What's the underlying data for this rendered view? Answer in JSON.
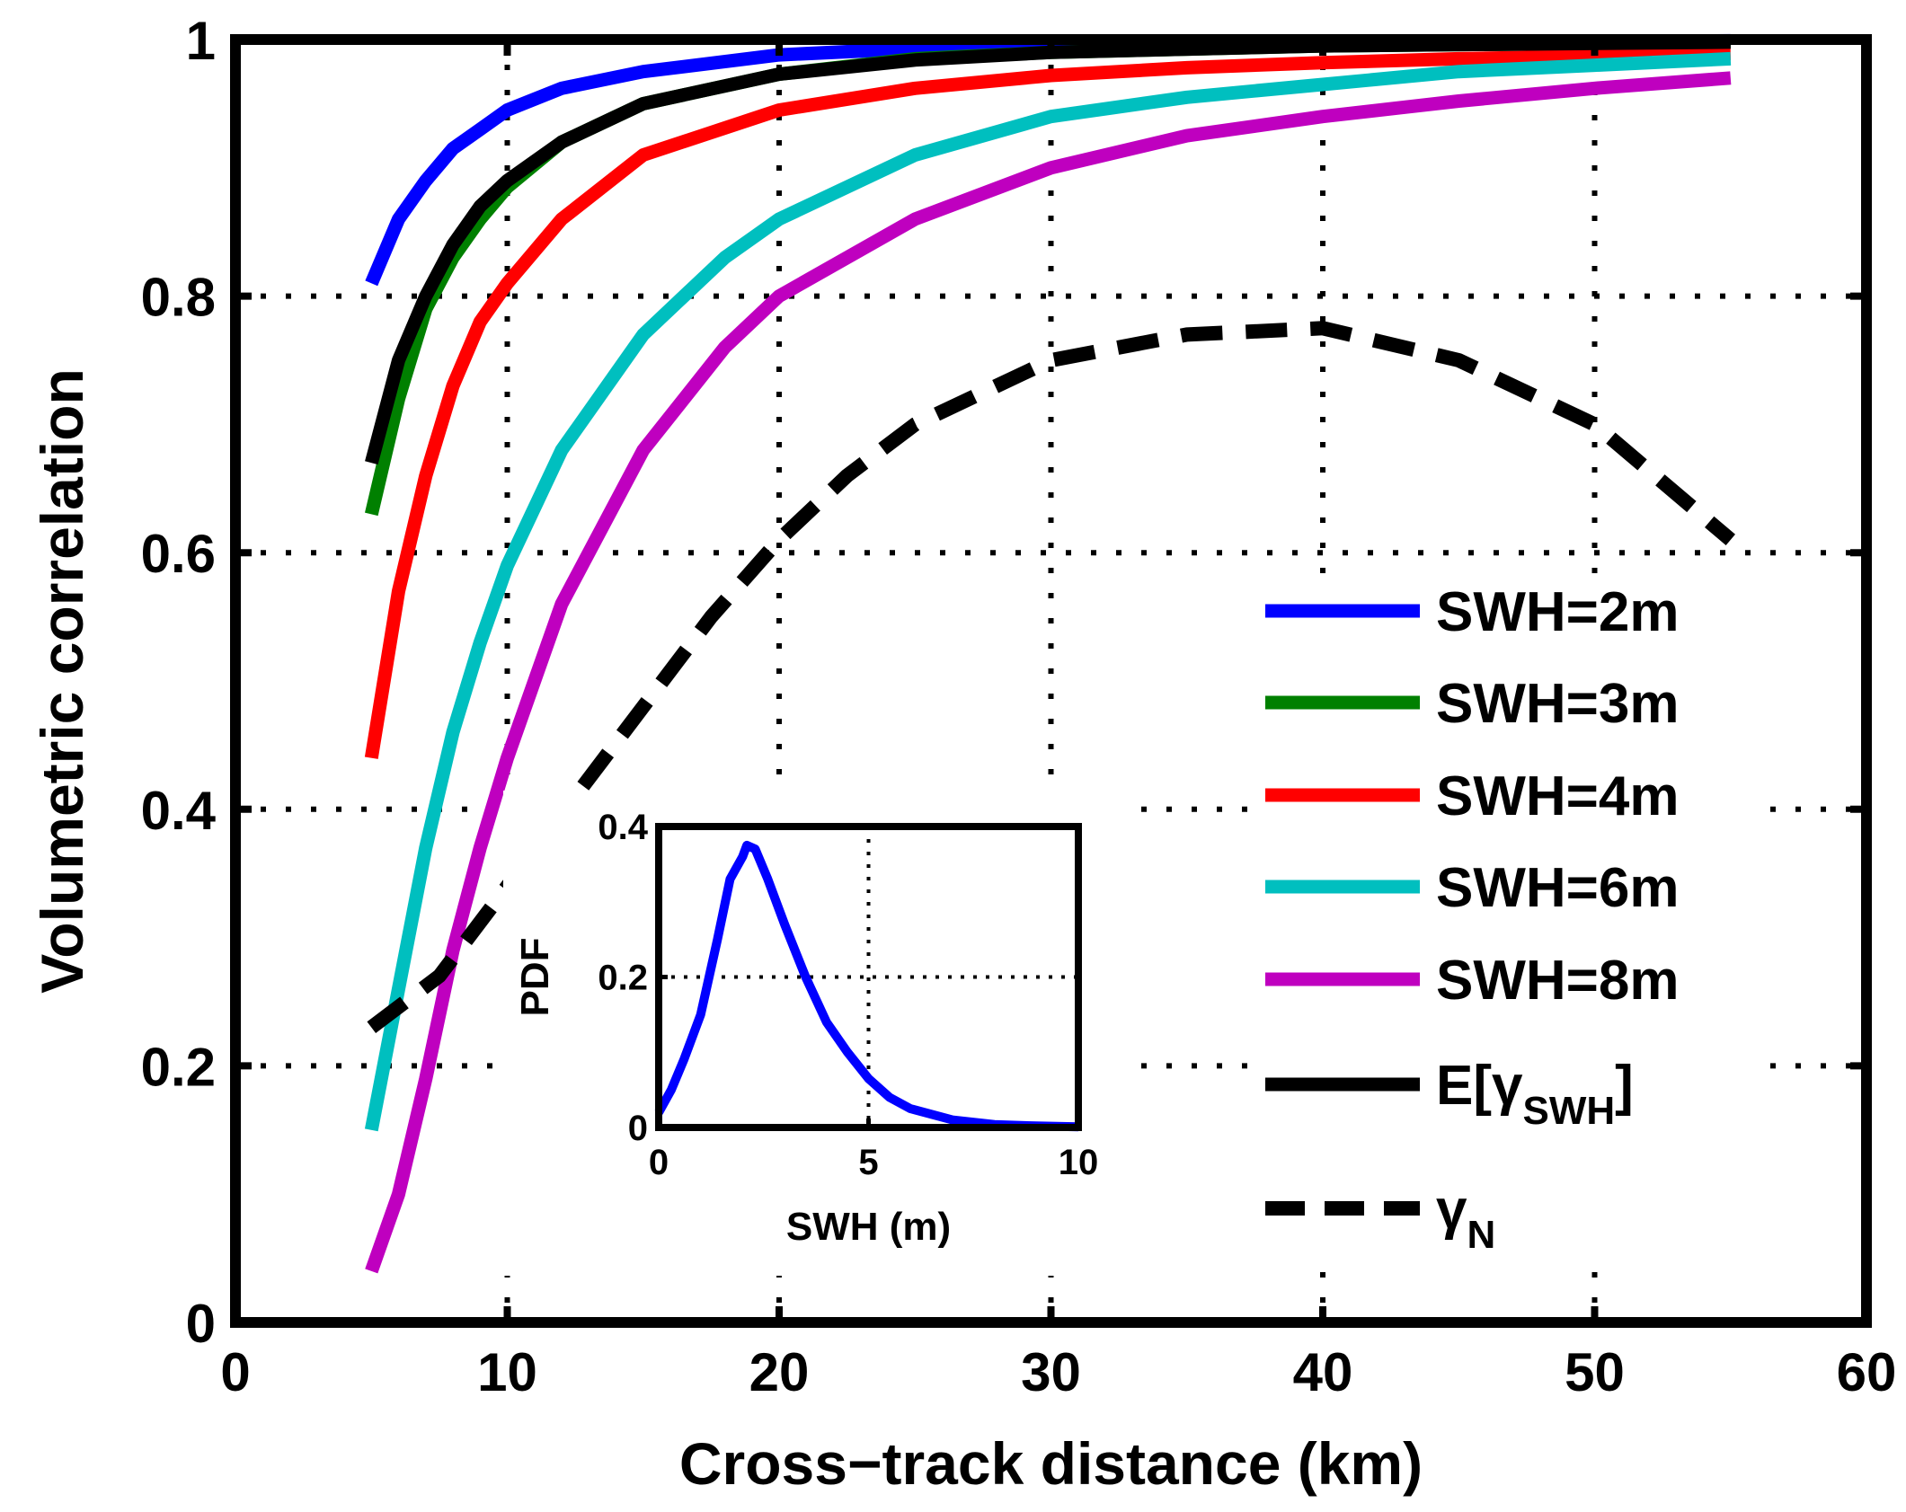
{
  "chart_data": {
    "type": "line",
    "xlabel": "Cross−track distance (km)",
    "ylabel": "Volumetric correlation",
    "xlim": [
      0,
      60
    ],
    "ylim": [
      0,
      1
    ],
    "xticks": [
      "0",
      "10",
      "20",
      "30",
      "40",
      "50",
      "60"
    ],
    "yticks": [
      "0",
      "0.2",
      "0.4",
      "0.6",
      "0.8",
      "1"
    ],
    "grid": "dotted",
    "legend_position": "right",
    "series": [
      {
        "name": "SWH=2m",
        "color": "#0000ff",
        "style": "solid",
        "x": [
          5,
          6,
          7,
          8,
          9,
          10,
          12,
          15,
          20,
          25,
          30,
          40,
          55
        ],
        "y": [
          0.81,
          0.86,
          0.89,
          0.915,
          0.93,
          0.945,
          0.962,
          0.975,
          0.988,
          0.993,
          0.996,
          0.998,
          0.999
        ]
      },
      {
        "name": "SWH=3m",
        "color": "#008000",
        "style": "solid",
        "x": [
          5,
          6,
          7,
          8,
          9,
          10,
          12,
          15,
          20,
          25,
          30,
          40,
          55
        ],
        "y": [
          0.63,
          0.72,
          0.79,
          0.83,
          0.86,
          0.885,
          0.92,
          0.95,
          0.973,
          0.985,
          0.99,
          0.995,
          0.998
        ]
      },
      {
        "name": "SWH=4m",
        "color": "#ff0000",
        "style": "solid",
        "x": [
          5,
          6,
          7,
          8,
          9,
          10,
          12,
          15,
          20,
          25,
          30,
          35,
          40,
          45,
          50,
          55
        ],
        "y": [
          0.44,
          0.57,
          0.66,
          0.73,
          0.78,
          0.81,
          0.86,
          0.91,
          0.945,
          0.962,
          0.972,
          0.978,
          0.982,
          0.985,
          0.987,
          0.989
        ]
      },
      {
        "name": "SWH=6m",
        "color": "#00bfbf",
        "style": "solid",
        "x": [
          5,
          6,
          7,
          8,
          9,
          10,
          12,
          15,
          18,
          20,
          25,
          30,
          35,
          40,
          45,
          50,
          55
        ],
        "y": [
          0.15,
          0.26,
          0.37,
          0.46,
          0.53,
          0.59,
          0.68,
          0.77,
          0.83,
          0.86,
          0.91,
          0.94,
          0.955,
          0.965,
          0.975,
          0.98,
          0.985
        ]
      },
      {
        "name": "SWH=8m",
        "color": "#bf00bf",
        "style": "solid",
        "x": [
          5,
          6,
          7,
          8,
          9,
          10,
          12,
          15,
          18,
          20,
          25,
          30,
          35,
          40,
          45,
          50,
          55
        ],
        "y": [
          0.04,
          0.1,
          0.19,
          0.29,
          0.37,
          0.44,
          0.56,
          0.68,
          0.76,
          0.8,
          0.86,
          0.9,
          0.925,
          0.94,
          0.952,
          0.962,
          0.97
        ]
      },
      {
        "name": "E[γ",
        "subscript": "SWH",
        "suffix": "]",
        "color": "#000000",
        "style": "solid",
        "x": [
          5,
          6,
          7,
          8,
          9,
          10,
          12,
          15,
          20,
          25,
          30,
          40,
          55
        ],
        "y": [
          0.67,
          0.75,
          0.8,
          0.84,
          0.87,
          0.89,
          0.92,
          0.95,
          0.973,
          0.984,
          0.99,
          0.995,
          0.998
        ]
      },
      {
        "name": "γ",
        "subscript": "N",
        "suffix": "",
        "color": "#000000",
        "style": "dashed",
        "x": [
          5,
          7.5,
          10,
          12.5,
          15,
          17.5,
          20,
          22.5,
          25,
          30,
          35,
          40,
          45,
          50,
          55
        ],
        "y": [
          0.23,
          0.27,
          0.34,
          0.41,
          0.48,
          0.55,
          0.61,
          0.66,
          0.7,
          0.75,
          0.77,
          0.775,
          0.75,
          0.7,
          0.61
        ]
      }
    ],
    "inset": {
      "type": "line",
      "xlabel": "SWH (m)",
      "ylabel": "PDF",
      "xlim": [
        0,
        10
      ],
      "ylim": [
        0,
        0.4
      ],
      "xticks": [
        "0",
        "5",
        "10"
      ],
      "yticks": [
        "0",
        "0.2",
        "0.4"
      ],
      "grid": "dotted",
      "series": [
        {
          "name": "PDF",
          "color": "#0000ff",
          "x": [
            0,
            0.3,
            0.6,
            1.0,
            1.4,
            1.7,
            2.0,
            2.1,
            2.3,
            2.6,
            3.0,
            3.5,
            4.0,
            4.5,
            5.0,
            5.5,
            6.0,
            7.0,
            8.0,
            9.0,
            10.0
          ],
          "y": [
            0.02,
            0.05,
            0.09,
            0.15,
            0.25,
            0.33,
            0.36,
            0.375,
            0.37,
            0.33,
            0.27,
            0.2,
            0.14,
            0.1,
            0.065,
            0.04,
            0.025,
            0.01,
            0.004,
            0.002,
            0.001
          ]
        }
      ]
    }
  }
}
